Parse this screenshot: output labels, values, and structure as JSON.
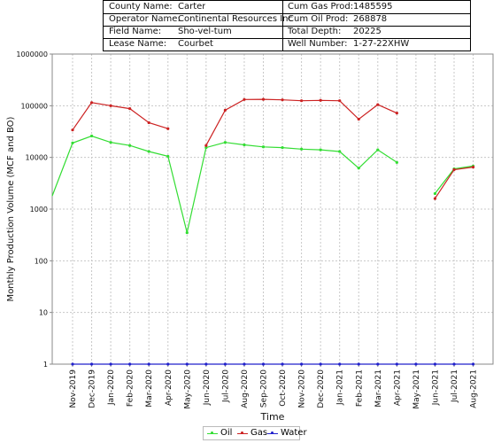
{
  "info": {
    "county_label": "County Name:",
    "county": "Carter",
    "operator_label": "Operator Name:",
    "operator": "Continental Resources Inc",
    "field_label": "Field Name:",
    "field": "Sho-vel-tum",
    "lease_label": "Lease Name:",
    "lease": "Courbet",
    "cum_gas_label": "Cum Gas Prod:",
    "cum_gas": "1485595",
    "cum_oil_label": "Cum Oil Prod:",
    "cum_oil": "268878",
    "depth_label": "Total Depth:",
    "depth": "20225",
    "well_label": "Well Number:",
    "well": "1-27-22XHW"
  },
  "chart_data": {
    "type": "line",
    "xlabel": "Time",
    "ylabel": "Monthly Production Volume (MCF and BO)",
    "yscale": "log",
    "ylim": [
      1,
      1000000
    ],
    "yticks": [
      "1000000",
      "100000",
      "10000",
      "1000",
      "100",
      "10",
      "1"
    ],
    "categories": [
      "Nov-2019",
      "Dec-2019",
      "Jan-2020",
      "Feb-2020",
      "Mar-2020",
      "Apr-2020",
      "May-2020",
      "Jun-2020",
      "Jul-2020",
      "Aug-2020",
      "Sep-2020",
      "Oct-2020",
      "Nov-2020",
      "Dec-2020",
      "Jan-2021",
      "Feb-2021",
      "Mar-2021",
      "Apr-2021",
      "May-2021",
      "Jun-2021",
      "Jul-2021",
      "Aug-2021"
    ],
    "grid": true,
    "legend_position": "bottom",
    "series": [
      {
        "name": "Oil",
        "color": "#33dd33",
        "lead_in": 1800,
        "values": [
          19000,
          26000,
          19500,
          17000,
          13000,
          10500,
          350,
          15500,
          19500,
          17500,
          16000,
          15500,
          14500,
          14000,
          13000,
          6200,
          14000,
          8000,
          null,
          2000,
          6000,
          6800
        ]
      },
      {
        "name": "Gas",
        "color": "#cc2222",
        "values": [
          34000,
          115000,
          100000,
          88000,
          47000,
          36000,
          null,
          17000,
          82000,
          132000,
          133000,
          130000,
          125000,
          127000,
          125000,
          55000,
          105000,
          72000,
          null,
          1600,
          5800,
          6500
        ]
      },
      {
        "name": "Water",
        "color": "#2222cc",
        "values": [
          1,
          1,
          1,
          1,
          1,
          1,
          1,
          1,
          1,
          1,
          1,
          1,
          1,
          1,
          1,
          1,
          1,
          1,
          1,
          1,
          1,
          1
        ]
      }
    ]
  }
}
